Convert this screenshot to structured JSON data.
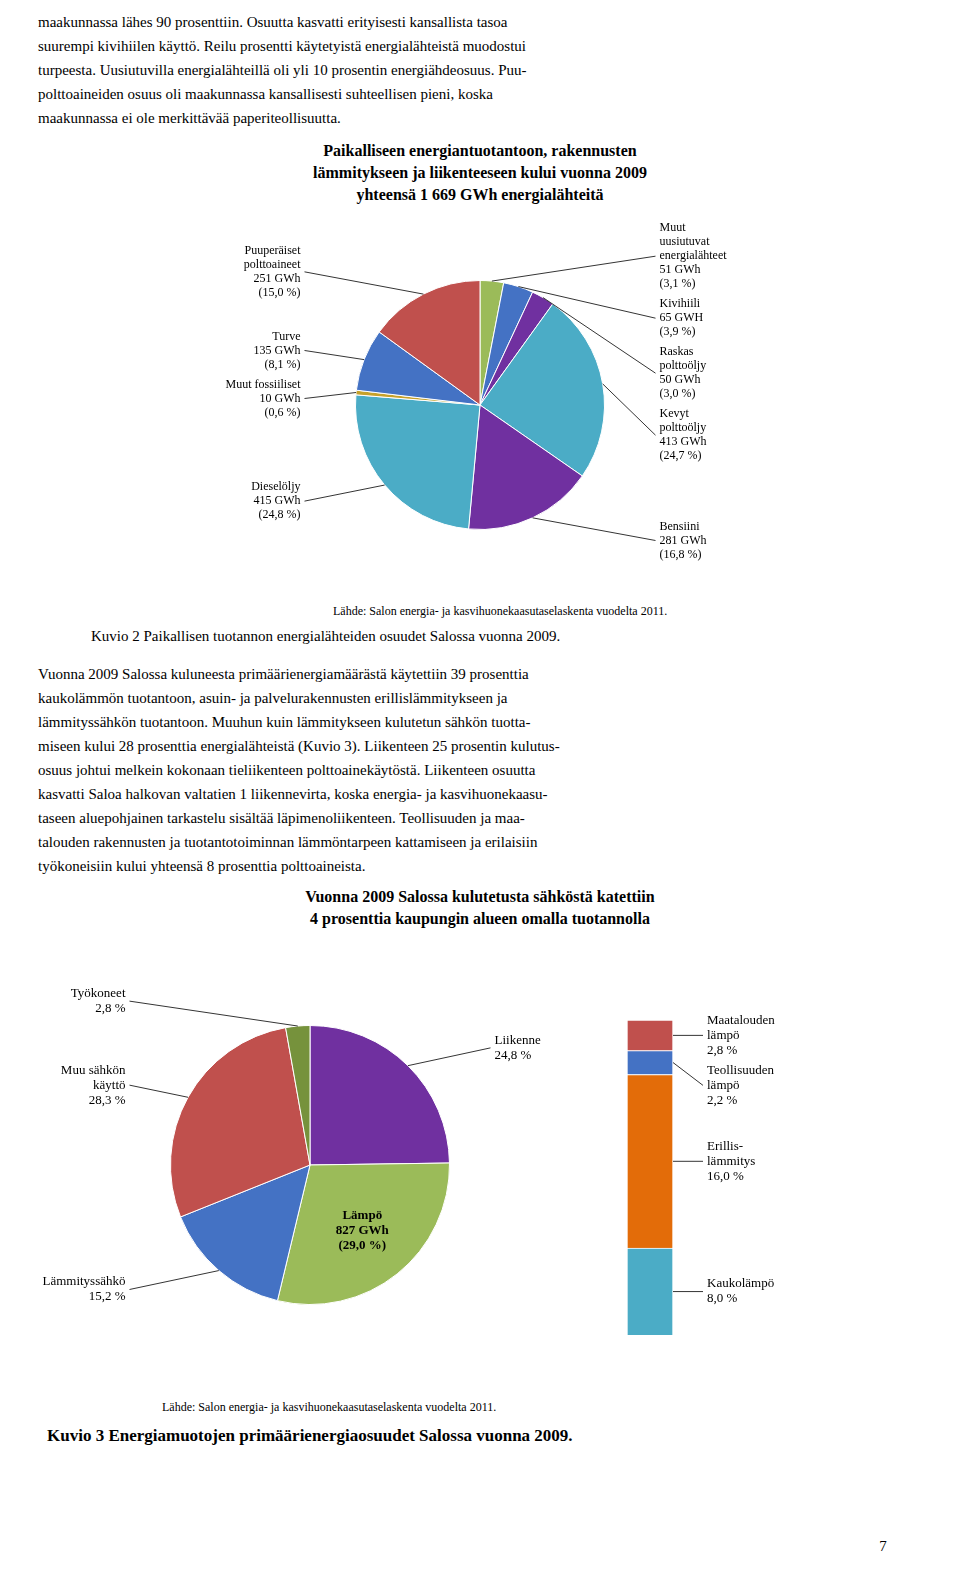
{
  "header_text": [
    "maakunnassa lähes 90 prosenttiin. Osuutta kasvatti erityisesti kansallista tasoa",
    "suurempi kivihiilen käyttö. Reilu prosentti käytetyistä energialähteistä muodostui",
    "turpeesta. Uusiutuvilla energialähteillä oli yli 10 prosentin energiähdeosuus. Puu-",
    "polttoaineiden osuus oli maakunnassa kansallisesti suhteellisen pieni, koska",
    "maakunnassa ei ole merkittävää paperiteollisuutta."
  ],
  "chart_data": [
    {
      "type": "pie",
      "title": "Paikalliseen energiantuotantoon, rakennusten\nlämmitykseen ja liikenteeseen kului vuonna 2009\nyhteensä 1 669 GWh energialähteitä",
      "categories": [
        "Muut\nuusiutuvat\nenergialähteet",
        "Kivihiili",
        "Raskas\npolttoöljy",
        "Kevyt\npolttoöljy",
        "Bensiini",
        "Dieselöljy",
        "Muut fossiiliset",
        "Turve",
        "Puuperäiset\npolttoaineet"
      ],
      "values": [
        51,
        65,
        50,
        413,
        281,
        415,
        10,
        135,
        251
      ],
      "value_labels": [
        "51 GWh\n(3,1 %)",
        "65 GWH\n(3,9 %)",
        "50 GWh\n(3,0 %)",
        "413 GWh\n(24,7 %)",
        "281 GWh\n(16,8 %)",
        "415 GWh\n(24,8 %)",
        "10 GWh\n(0,6 %)",
        "135 GWh\n(8,1 %)",
        "251 GWh\n(15,0 %)"
      ],
      "colors": [
        "#9bbb59",
        "#4472c4",
        "#7030a0",
        "#4bacc6",
        "#7030a0",
        "#4bacc6",
        "#c6a12b",
        "#4472c4",
        "#c0504d"
      ],
      "data_labels": true,
      "annotations": [
        "Lähde: Salon energia- ja kasvihuonekaasutaselaskenta vuodelta 2011.",
        "Kuvio 2 Paikallisen tuotannon energialähteiden osuudet Salossa vuonna 2009."
      ]
    },
    {
      "type": "pie",
      "title": "Vuonna 2009 Salossa kulutetusta sähköstä katettiin\n4 prosenttia kaupungin alueen omalla tuotannolla",
      "categories": [
        "Liikenne",
        "Lämpö\n827 GWh",
        "Lämmityssähkö",
        "Muu sähkön\nkäyttö",
        "Työkoneet"
      ],
      "values": [
        24.8,
        29.0,
        15.2,
        28.3,
        2.8
      ],
      "value_labels": [
        "24,8 %",
        "(29,0 %)",
        "15,2 %",
        "28,3 %",
        "2,8 %"
      ],
      "colors": [
        "#7030a0",
        "#9bbb59",
        "#4472c4",
        "#c0504d",
        "#76923c"
      ],
      "data_labels": true,
      "annotations": [
        "Lähde: Salon energia- ja kasvihuonekaasutaselaskenta vuodelta 2011.",
        "Kuvio 3 Energiamuotojen primäärienergiaosuudet Salossa vuonna 2009."
      ]
    },
    {
      "type": "bar",
      "stacked": true,
      "categories": [
        null
      ],
      "series": [
        {
          "name": "Kaukolämpö",
          "color": "#4bacc6",
          "values": [
            8.0
          ],
          "value_labels": [
            "8,0 %"
          ]
        },
        {
          "name": "Erillis-\nlämmitys",
          "color": "#e36c09",
          "values": [
            16.0
          ],
          "value_labels": [
            "16,0 %"
          ]
        },
        {
          "name": "Teollisuuden\nlämpö",
          "color": "#4472c4",
          "values": [
            2.2
          ],
          "value_labels": [
            "2,2 %"
          ]
        },
        {
          "name": "Maatalouden\nlämpö",
          "color": "#c0504d",
          "values": [
            2.8
          ],
          "value_labels": [
            "2,8 %"
          ]
        }
      ],
      "ylim": [
        0,
        31.32
      ],
      "grid": false,
      "tick_labels": false,
      "data_labels": true
    }
  ],
  "body_text": [
    "Vuonna 2009 Salossa kuluneesta primäärienergiamäärästä käytettiin 39 prosenttia",
    "kaukolämmön tuotantoon, asuin- ja palvelurakennusten erillislämmitykseen ja",
    "lämmityssähkön tuotantoon. Muuhun kuin lämmitykseen kulutetun sähkön tuotta-",
    "miseen kului 28 prosenttia energialähteistä (Kuvio 3). Liikenteen 25 prosentin kulutus-",
    "osuus johtui melkein kokonaan tieliikenteen polttoainekäytöstä. Liikenteen osuutta",
    "kasvatti Saloa halkovan valtatien 1 liikennevirta, koska energia- ja kasvihuonekaasu-",
    "taseen aluepohjainen tarkastelu sisältää läpimenoliikenteen. Teollisuuden ja maa-",
    "talouden rakennusten ja tuotantotoiminnan lämmöntarpeen kattamiseen ja erilaisiin",
    "työkoneisiin kului yhteensä 8 prosenttia polttoaineista."
  ],
  "page_number": "7"
}
